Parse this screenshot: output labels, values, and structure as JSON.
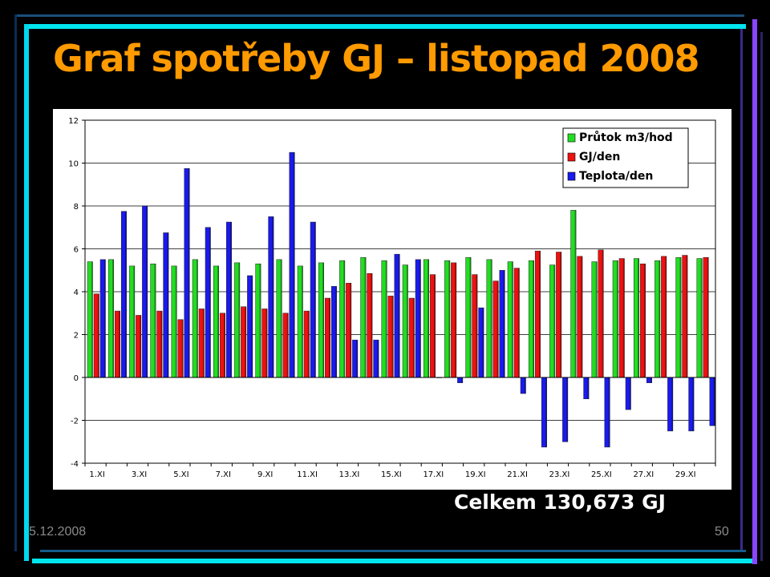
{
  "slide": {
    "title": "Graf spotřeby GJ – listopad 2008",
    "total_text": "Celkem 130,673 GJ",
    "date": "5.12.2008",
    "page_number": "50"
  },
  "chart_data": {
    "type": "bar",
    "title": "",
    "xlabel": "",
    "ylabel": "",
    "ylim": [
      -4,
      12
    ],
    "yticks": [
      -4,
      -2,
      0,
      2,
      4,
      6,
      8,
      10,
      12
    ],
    "grid": true,
    "legend_position": "top-right",
    "categories": [
      "1.XI",
      "2.XI",
      "3.XI",
      "4.XI",
      "5.XI",
      "6.XI",
      "7.XI",
      "8.XI",
      "9.XI",
      "10.XI",
      "11.XI",
      "12.XI",
      "13.XI",
      "14.XI",
      "15.XI",
      "16.XI",
      "17.XI",
      "18.XI",
      "19.XI",
      "20.XI",
      "21.XI",
      "22.XI",
      "23.XI",
      "24.XI",
      "25.XI",
      "26.XI",
      "27.XI",
      "28.XI",
      "29.XI",
      "30.XI"
    ],
    "tick_labels": [
      "1.XI",
      "",
      "3.XI",
      "",
      "5.XI",
      "",
      "7.XI",
      "",
      "9.XI",
      "",
      "11.XI",
      "",
      "13.XI",
      "",
      "15.XI",
      "",
      "17.XI",
      "",
      "19.XI",
      "",
      "21.XI",
      "",
      "23.XI",
      "",
      "25.XI",
      "",
      "27.XI",
      "",
      "29.XI",
      ""
    ],
    "series": [
      {
        "name": "Průtok m3/hod",
        "color": "#22dd22",
        "values": [
          5.4,
          5.5,
          5.2,
          5.3,
          5.2,
          5.5,
          5.2,
          5.35,
          5.3,
          5.5,
          5.2,
          5.35,
          5.45,
          5.6,
          5.45,
          5.25,
          5.5,
          5.45,
          5.6,
          5.5,
          5.4,
          5.45,
          5.25,
          7.8,
          5.4,
          5.45,
          5.55,
          5.45,
          5.6,
          5.55
        ]
      },
      {
        "name": "GJ/den",
        "color": "#ee1111",
        "values": [
          3.9,
          3.1,
          2.9,
          3.1,
          2.7,
          3.2,
          3.0,
          3.3,
          3.2,
          3.0,
          3.1,
          3.7,
          4.4,
          4.85,
          3.8,
          3.7,
          4.8,
          5.35,
          4.8,
          4.5,
          5.1,
          5.9,
          5.85,
          5.65,
          5.95,
          5.55,
          5.3,
          5.65,
          5.7,
          5.6
        ]
      },
      {
        "name": "Teplota/den",
        "color": "#1a1aee",
        "values": [
          5.5,
          7.75,
          8.0,
          6.75,
          9.75,
          7.0,
          7.25,
          4.75,
          7.5,
          10.5,
          7.25,
          4.25,
          1.75,
          1.75,
          5.75,
          5.5,
          0,
          -0.25,
          3.25,
          5.0,
          -0.75,
          -3.25,
          -3.0,
          -1.0,
          -3.25,
          -1.5,
          -0.25,
          -2.5,
          -2.5,
          -2.25
        ]
      }
    ]
  }
}
